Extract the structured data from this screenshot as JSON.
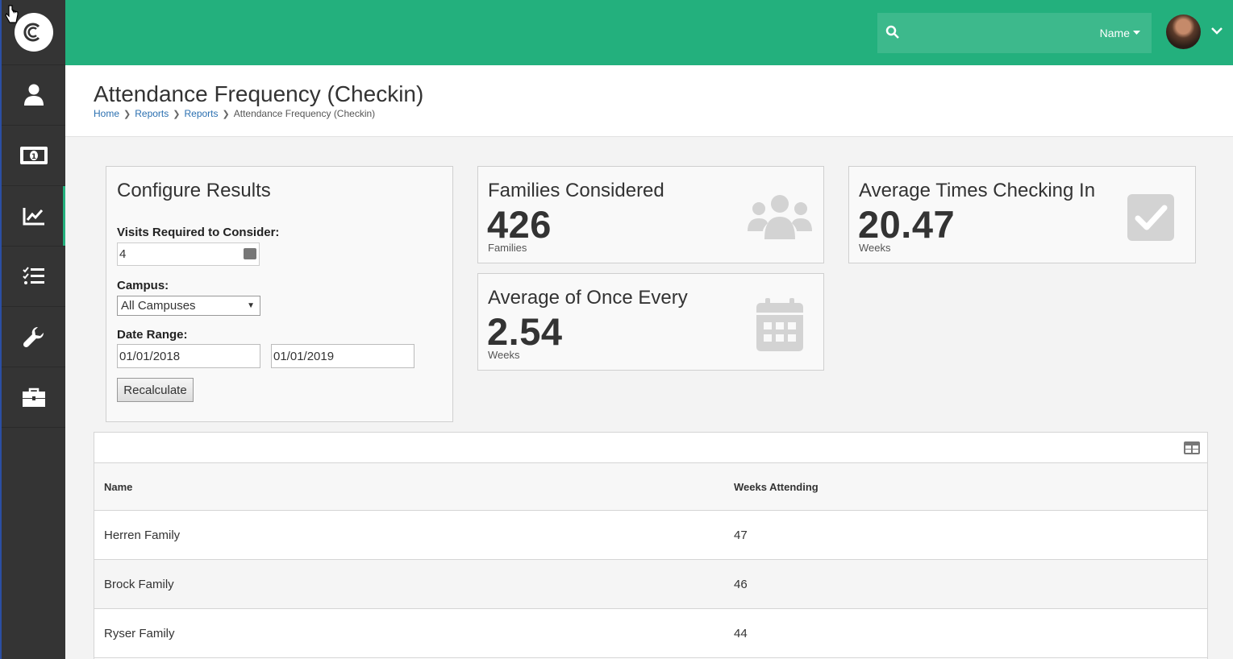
{
  "header": {
    "search_placeholder": "",
    "search_filter_label": "Name"
  },
  "sidebar": {
    "items": [
      {
        "icon": "person-icon"
      },
      {
        "icon": "money-icon"
      },
      {
        "icon": "chart-icon",
        "active": true
      },
      {
        "icon": "checklist-icon"
      },
      {
        "icon": "wrench-icon"
      },
      {
        "icon": "briefcase-icon"
      }
    ]
  },
  "page": {
    "title": "Attendance Frequency (Checkin)",
    "breadcrumb": [
      "Home",
      "Reports",
      "Reports",
      "Attendance Frequency (Checkin)"
    ]
  },
  "config": {
    "title": "Configure Results",
    "visits_label": "Visits Required to Consider:",
    "visits_value": "4",
    "campus_label": "Campus:",
    "campus_value": "All Campuses",
    "date_range_label": "Date Range:",
    "date_start": "01/01/2018",
    "date_end": "01/01/2019",
    "recalculate_label": "Recalculate"
  },
  "stats": {
    "families": {
      "title": "Families Considered",
      "value": "426",
      "unit": "Families"
    },
    "avg_times": {
      "title": "Average Times Checking In",
      "value": "20.47",
      "unit": "Weeks"
    },
    "avg_once": {
      "title": "Average of Once Every",
      "value": "2.54",
      "unit": "Weeks"
    }
  },
  "grid": {
    "columns": [
      "Name",
      "Weeks Attending"
    ],
    "rows": [
      [
        "Herren Family",
        "47"
      ],
      [
        "Brock Family",
        "46"
      ],
      [
        "Ryser Family",
        "44"
      ]
    ]
  },
  "colors": {
    "accent": "#23b07d",
    "sidebar": "#343434",
    "link": "#2a6fb0"
  }
}
